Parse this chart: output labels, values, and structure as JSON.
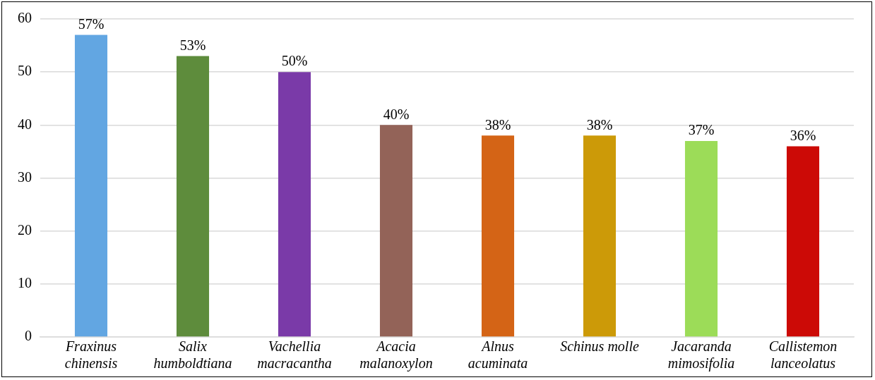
{
  "chart_data": {
    "type": "bar",
    "categories": [
      "Fraxinus chinensis",
      "Salix humboldtiana",
      "Vachellia macracantha",
      "Acacia malanoxylon",
      "Alnus acuminata",
      "Schinus molle",
      "Jacaranda mimosifolia",
      "Callistemon lanceolatus"
    ],
    "values": [
      57,
      53,
      50,
      40,
      38,
      38,
      37,
      36
    ],
    "colors": [
      "#62a6e2",
      "#5e8c3c",
      "#7a3aa8",
      "#936358",
      "#d46416",
      "#cc9a08",
      "#9cdc58",
      "#cc0a06"
    ],
    "value_labels": [
      "57%",
      "53%",
      "50%",
      "40%",
      "38%",
      "38%",
      "37%",
      "36%"
    ],
    "ylim": [
      0,
      60
    ],
    "yticks": [
      0,
      10,
      20,
      30,
      40,
      50,
      60
    ],
    "grid": "y",
    "legend": false
  }
}
